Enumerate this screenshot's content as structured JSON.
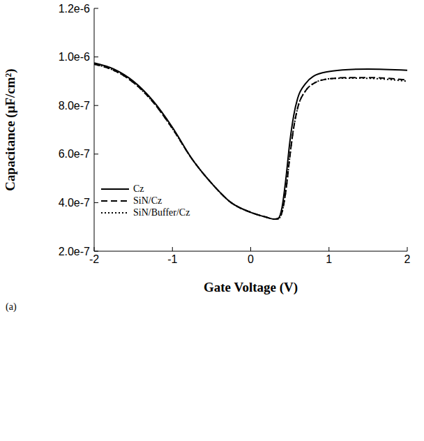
{
  "chart_data": {
    "type": "line",
    "x_label": "Gate Voltage (V)",
    "y_label": "Capacitance (μF/cm²)",
    "panel_label": "(a)",
    "x": [
      -2,
      -1.75,
      -1.5,
      -1.25,
      -1,
      -0.75,
      -0.5,
      -0.25,
      0,
      0.2,
      0.3,
      0.35,
      0.4,
      0.45,
      0.5,
      0.55,
      0.6,
      0.7,
      0.8,
      1.0,
      1.25,
      1.5,
      2
    ],
    "series": [
      {
        "name": "Cz",
        "color": "#000000",
        "line_style": "solid",
        "values": [
          9.75e-07,
          9.5e-07,
          9e-07,
          8.2e-07,
          7.1e-07,
          5.8e-07,
          4.8e-07,
          4e-07,
          3.6e-07,
          3.4e-07,
          3.32e-07,
          3.35e-07,
          3.8e-07,
          5e-07,
          6.5e-07,
          7.6e-07,
          8.3e-07,
          8.9e-07,
          9.2e-07,
          9.4e-07,
          9.48e-07,
          9.5e-07,
          9.45e-07
        ]
      },
      {
        "name": "SiN/Cz",
        "color": "#000000",
        "line_style": "dashed",
        "values": [
          9.7e-07,
          9.45e-07,
          8.95e-07,
          8.15e-07,
          7.05e-07,
          5.8e-07,
          4.8e-07,
          4e-07,
          3.6e-07,
          3.4e-07,
          3.32e-07,
          3.33e-07,
          3.6e-07,
          4.5e-07,
          5.9e-07,
          7.1e-07,
          7.9e-07,
          8.6e-07,
          8.9e-07,
          9.1e-07,
          9.15e-07,
          9.15e-07,
          9.05e-07
        ]
      },
      {
        "name": "SiN/Buffer/Cz",
        "color": "#000000",
        "line_style": "dotted",
        "values": [
          9.7e-07,
          9.45e-07,
          8.95e-07,
          8.15e-07,
          7.05e-07,
          5.8e-07,
          4.8e-07,
          4e-07,
          3.6e-07,
          3.4e-07,
          3.32e-07,
          3.33e-07,
          3.6e-07,
          4.5e-07,
          5.9e-07,
          7.1e-07,
          7.9e-07,
          8.6e-07,
          8.9e-07,
          9.1e-07,
          9.13e-07,
          9.12e-07,
          9e-07
        ]
      }
    ],
    "xlim": [
      -2,
      2
    ],
    "xticks": [
      -2,
      -1,
      0,
      1,
      2
    ],
    "ylim": [
      2e-07,
      1.2e-06
    ],
    "yticks": [
      {
        "value": 2e-07,
        "label": "2.0e-7"
      },
      {
        "value": 4e-07,
        "label": "4.0e-7"
      },
      {
        "value": 6e-07,
        "label": "6.0e-7"
      },
      {
        "value": 8e-07,
        "label": "8.0e-7"
      },
      {
        "value": 1e-06,
        "label": "1.0e-6"
      },
      {
        "value": 1.2e-06,
        "label": "1.2e-6"
      }
    ],
    "legend": "lower left",
    "grid": false
  }
}
